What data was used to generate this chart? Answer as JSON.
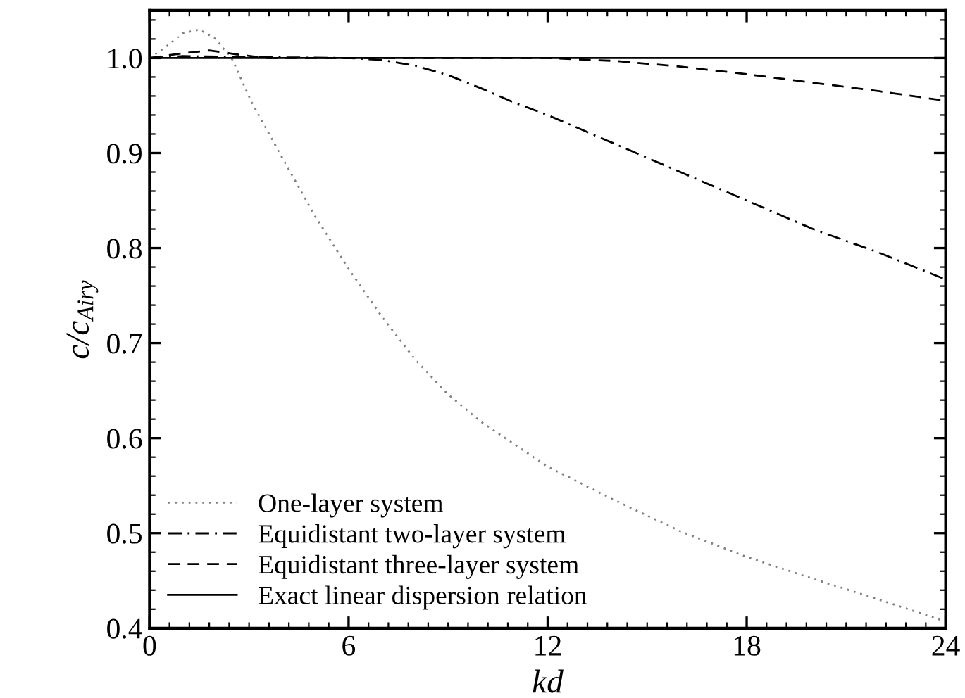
{
  "chart_data": {
    "type": "line",
    "xlabel": "kd",
    "ylabel": "c/c$_{Airy}$",
    "xlim": [
      0,
      24
    ],
    "ylim": [
      0.4,
      1.05
    ],
    "xticks": [
      0,
      6,
      12,
      18,
      24
    ],
    "yticks": [
      0.4,
      0.5,
      0.6,
      0.7,
      0.8,
      0.9,
      {
        "value": 1.0,
        "label": "1.0"
      }
    ],
    "legend": "bottom left",
    "grid": false,
    "series": [
      {
        "name": "One-layer system",
        "color": "#808080",
        "line_style": "dotted",
        "x": [
          0,
          0.5,
          1,
          1.5,
          2,
          2.5,
          3.07,
          4,
          5,
          6,
          7,
          8,
          9,
          10,
          12,
          14,
          16,
          18,
          20,
          22,
          24
        ],
        "values": [
          1.0,
          1.012,
          1.026,
          1.03,
          1.02,
          0.998,
          0.954,
          0.895,
          0.833,
          0.778,
          0.728,
          0.683,
          0.646,
          0.617,
          0.57,
          0.535,
          0.502,
          0.475,
          0.452,
          0.43,
          0.407
        ]
      },
      {
        "name": "Equidistant two-layer system",
        "color": "#000000",
        "line_style": "dashdot",
        "x": [
          0,
          1,
          3,
          6,
          7,
          8,
          9,
          10,
          11,
          12,
          14,
          16,
          18,
          20,
          22,
          24
        ],
        "values": [
          1.0,
          1.002,
          1.001,
          1.0,
          0.998,
          0.992,
          0.982,
          0.968,
          0.953,
          0.94,
          0.91,
          0.88,
          0.85,
          0.82,
          0.795,
          0.767
        ]
      },
      {
        "name": "Equidistant three-layer system",
        "color": "#000000",
        "line_style": "dashed",
        "x": [
          0,
          1,
          1.8,
          2.6,
          3.5,
          12,
          14,
          16,
          18,
          20,
          22,
          24
        ],
        "values": [
          1.0,
          1.005,
          1.008,
          1.004,
          1.0,
          1.0,
          0.997,
          0.991,
          0.983,
          0.974,
          0.965,
          0.955
        ]
      },
      {
        "name": "Exact linear dispersion relation",
        "color": "#000000",
        "line_style": "solid",
        "x": [
          0,
          24
        ],
        "values": [
          1.0,
          1.0
        ]
      }
    ]
  }
}
